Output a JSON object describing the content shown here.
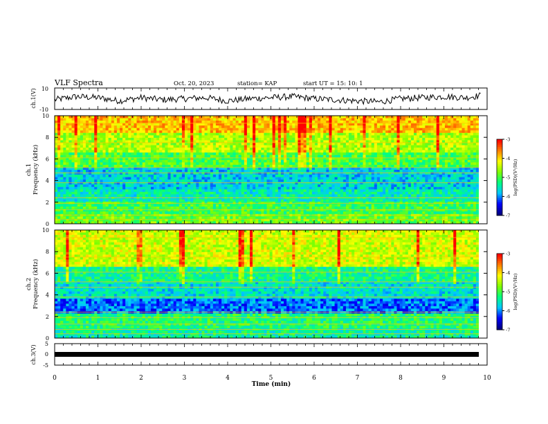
{
  "header": {
    "title": "VLF Spectra",
    "date": "Oct. 20, 2023",
    "station": "station= KAP",
    "start": "start  UT  =   15: 10: 1"
  },
  "colorscale": {
    "stops": [
      "#000080",
      "#0000ff",
      "#00c8ff",
      "#00ff80",
      "#80ff00",
      "#ffff00",
      "#ff8000",
      "#ff0000",
      "#ffffff"
    ],
    "label": "log(PSD)(V²/Hz)"
  },
  "chart_data": [
    {
      "type": "line",
      "panel": "ch1-waveform",
      "ylabel": "ch.1(V)",
      "ylim": [
        -10,
        10
      ],
      "yticks": [
        "10",
        "-10"
      ],
      "xlim": [
        0,
        10
      ],
      "series": [
        {
          "values_description_free": true,
          "x": [
            0,
            0.5,
            1,
            1.5,
            2,
            2.5,
            3,
            3.5,
            4,
            4.5,
            5,
            5.5,
            6,
            6.5,
            7,
            7.5,
            8,
            8.5,
            9,
            9.5,
            9.85
          ],
          "y": [
            -1,
            2,
            1,
            -2,
            1,
            -1,
            0,
            1,
            -2,
            0,
            1,
            2,
            0,
            -1,
            -2,
            -3,
            0,
            1,
            2,
            1,
            3
          ]
        }
      ]
    },
    {
      "type": "heatmap",
      "panel": "ch1-spectrogram",
      "ylabel": "ch.1",
      "ylabel2": "Frequency  (kHz)",
      "yticks": [
        "0",
        "2",
        "4",
        "6",
        "8",
        "10"
      ],
      "ylim": [
        0,
        10
      ],
      "xlim": [
        0,
        10
      ],
      "colorbar": {
        "min": -7,
        "max": -3,
        "ticks": [
          "-3",
          "-4",
          "-5",
          "-6",
          "-7"
        ]
      },
      "bands_khz": [
        {
          "from": 0,
          "to": 1,
          "level": 0.55
        },
        {
          "from": 1,
          "to": 2.1,
          "level": 0.48
        },
        {
          "from": 2.1,
          "to": 3.2,
          "level": 0.38
        },
        {
          "from": 3.2,
          "to": 5.3,
          "level": 0.32
        },
        {
          "from": 5.3,
          "to": 6.6,
          "level": 0.5
        },
        {
          "from": 6.6,
          "to": 8.5,
          "level": 0.62
        },
        {
          "from": 8.5,
          "to": 10,
          "level": 0.78
        }
      ]
    },
    {
      "type": "heatmap",
      "panel": "ch2-spectrogram",
      "ylabel": "ch.2",
      "ylabel2": "Frequency  (kHz)",
      "yticks": [
        "0",
        "2",
        "4",
        "6",
        "8",
        "10"
      ],
      "ylim": [
        0,
        10
      ],
      "xlim": [
        0,
        10
      ],
      "colorbar": {
        "min": -7,
        "max": -3,
        "ticks": [
          "-3",
          "-4",
          "-5",
          "-6",
          "-7"
        ]
      },
      "bands_khz": [
        {
          "from": 0,
          "to": 1,
          "level": 0.4
        },
        {
          "from": 1,
          "to": 2.2,
          "level": 0.45
        },
        {
          "from": 2.2,
          "to": 3.6,
          "level": 0.22
        },
        {
          "from": 3.6,
          "to": 5.2,
          "level": 0.35
        },
        {
          "from": 5.2,
          "to": 6.6,
          "level": 0.42
        },
        {
          "from": 6.6,
          "to": 10,
          "level": 0.66
        }
      ]
    },
    {
      "type": "line",
      "panel": "ch3-waveform",
      "ylabel": "ch.3(V)",
      "ylim": [
        -5,
        5
      ],
      "yticks": [
        "5",
        "0",
        "-5"
      ],
      "xlim": [
        0,
        10
      ],
      "series": [
        {
          "x": [
            0,
            9.85
          ],
          "y": [
            0,
            0
          ]
        }
      ]
    }
  ],
  "xaxis": {
    "label": "Time  (min)",
    "ticks": [
      "0",
      "1",
      "2",
      "3",
      "4",
      "5",
      "6",
      "7",
      "8",
      "9",
      "10"
    ]
  }
}
